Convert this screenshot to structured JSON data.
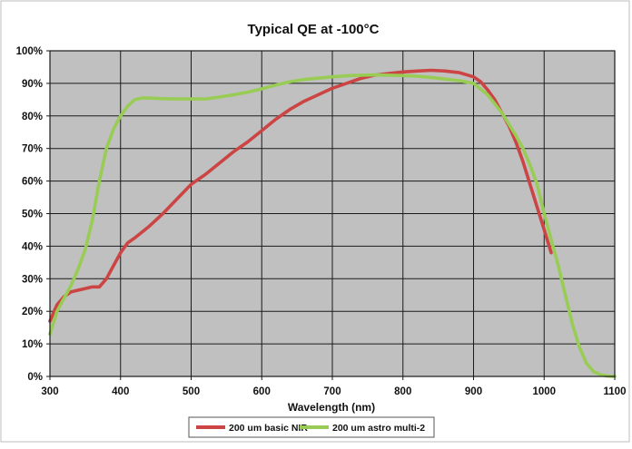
{
  "chart_data": {
    "type": "line",
    "title": "Typical QE at -100°C",
    "xlabel": "Wavelength (nm)",
    "ylabel": "",
    "xlim": [
      300,
      1100
    ],
    "ylim": [
      0,
      100
    ],
    "x_ticks": [
      300,
      400,
      500,
      600,
      700,
      800,
      900,
      1000,
      1100
    ],
    "y_ticks": [
      "0%",
      "10%",
      "20%",
      "30%",
      "40%",
      "50%",
      "60%",
      "70%",
      "80%",
      "90%",
      "100%"
    ],
    "grid": true,
    "legend_position": "bottom",
    "plot_background": "#c0c0c0",
    "series": [
      {
        "name": "200 um basic NIR",
        "color": "#cc4444",
        "x": [
          300,
          310,
          320,
          330,
          340,
          350,
          360,
          370,
          380,
          390,
          400,
          410,
          420,
          440,
          460,
          480,
          500,
          520,
          540,
          560,
          580,
          600,
          620,
          640,
          660,
          680,
          700,
          720,
          740,
          760,
          780,
          800,
          820,
          840,
          860,
          880,
          900,
          910,
          920,
          930,
          940,
          950,
          960,
          970,
          980,
          990,
          1000,
          1010
        ],
        "y": [
          17,
          22,
          24.5,
          26,
          26.5,
          27,
          27.5,
          27.5,
          30,
          34,
          38,
          41,
          42.5,
          46,
          50,
          54.5,
          59,
          62,
          65.5,
          69,
          72,
          75.5,
          79,
          82,
          84.5,
          86.5,
          88.5,
          90,
          91.5,
          92.5,
          93,
          93.5,
          93.8,
          94,
          93.8,
          93.3,
          92,
          90.5,
          88,
          85,
          81,
          77,
          72,
          66,
          59,
          52,
          45,
          38
        ]
      },
      {
        "name": "200 um astro multi-2",
        "color": "#99cc55",
        "x": [
          300,
          310,
          320,
          330,
          340,
          350,
          360,
          370,
          380,
          390,
          400,
          410,
          420,
          430,
          440,
          460,
          480,
          500,
          520,
          540,
          560,
          580,
          600,
          620,
          640,
          660,
          680,
          700,
          720,
          740,
          760,
          780,
          800,
          820,
          840,
          860,
          880,
          900,
          920,
          940,
          960,
          970,
          980,
          990,
          1000,
          1010,
          1020,
          1030,
          1040,
          1050,
          1060,
          1070,
          1080,
          1090,
          1100
        ],
        "y": [
          13,
          20,
          24,
          28,
          33,
          39,
          48,
          60,
          70,
          76,
          80,
          83,
          85,
          85.5,
          85.5,
          85.3,
          85.2,
          85.2,
          85.2,
          85.8,
          86.5,
          87.3,
          88.3,
          89.5,
          90.5,
          91.2,
          91.6,
          92,
          92.3,
          92.5,
          92.6,
          92.5,
          92.4,
          92.2,
          91.8,
          91.3,
          90.8,
          90,
          86.5,
          81,
          74,
          70,
          65,
          59,
          50,
          42,
          34,
          25,
          16,
          9,
          4,
          1.5,
          0.5,
          0.1,
          0
        ]
      }
    ]
  }
}
